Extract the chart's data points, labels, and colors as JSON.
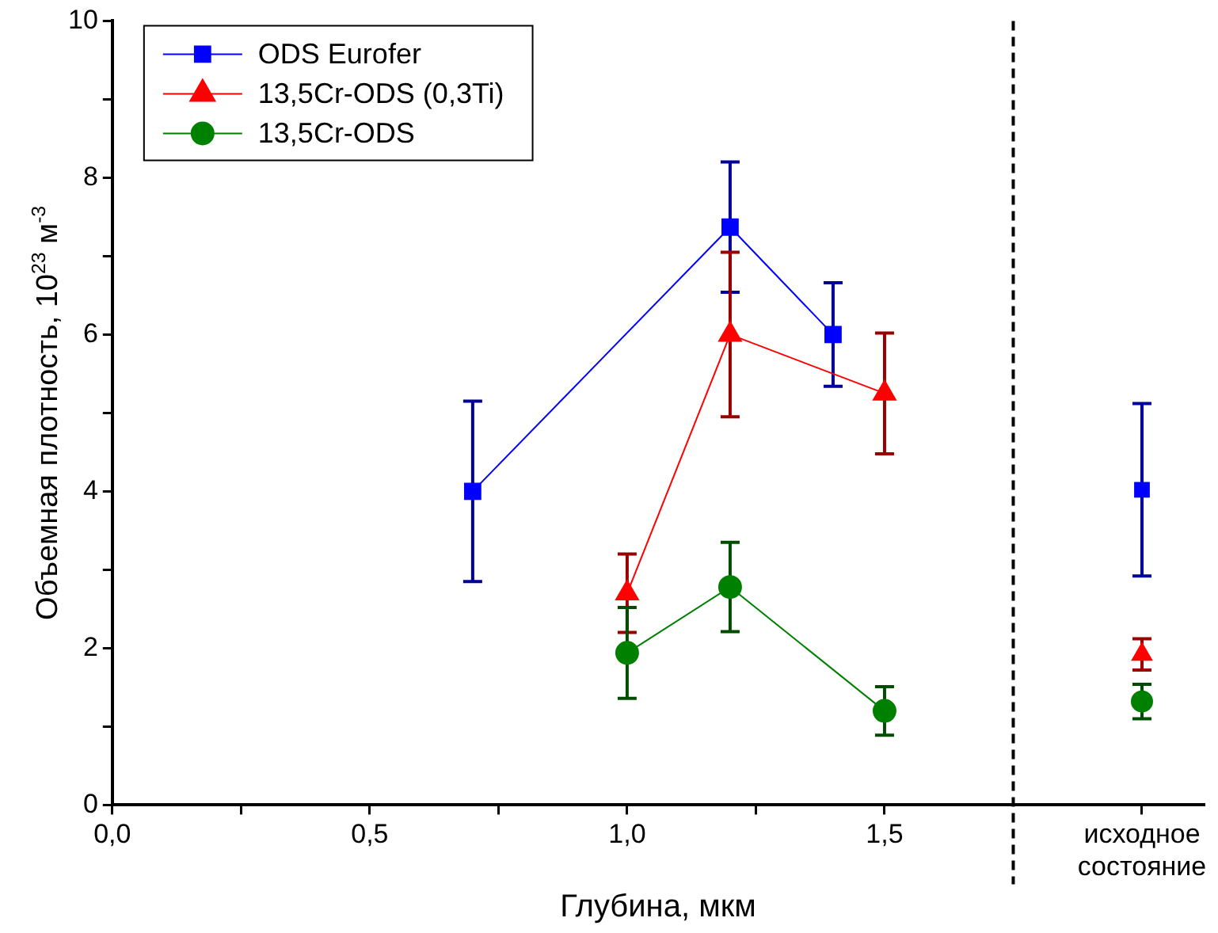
{
  "chart_data": {
    "type": "line",
    "xlabel": "Глубина, мкм",
    "ylabel": "Объемная плотность, 10$^{23}$ м$^{-3}$",
    "xlim": [
      0,
      2.12
    ],
    "ylim": [
      0,
      10
    ],
    "xticks": [
      {
        "value": 0,
        "label": "0,0"
      },
      {
        "value": 0.25,
        "label": null
      },
      {
        "value": 0.5,
        "label": "0,5"
      },
      {
        "value": 0.75,
        "label": null
      },
      {
        "value": 1,
        "label": "1,0"
      },
      {
        "value": 1.25,
        "label": null
      },
      {
        "value": 1.5,
        "label": "1,5"
      },
      {
        "value": 2,
        "label": "исходное состояние"
      }
    ],
    "yticks": [
      0,
      {
        "value": 1,
        "label": null
      },
      2,
      {
        "value": 3,
        "label": null
      },
      4,
      {
        "value": 5,
        "label": null
      },
      6,
      {
        "value": 7,
        "label": null
      },
      8,
      {
        "value": 9,
        "label": null
      },
      10
    ],
    "grid": false,
    "legend": "top left",
    "line_style": "solid",
    "ref_lines": [
      {
        "axis": "x",
        "value": 1.75,
        "label": null,
        "color": "#000000",
        "line_style": "dashed"
      }
    ],
    "series": [
      {
        "name": "ODS Eurofer",
        "type": "line",
        "marker": "square",
        "color": "#0000ff",
        "x": [
          0.7,
          1.2,
          1.4
        ],
        "values": [
          4.0,
          7.37,
          6.0
        ],
        "errors": [
          1.15,
          0.83,
          0.66
        ]
      },
      {
        "name": "13,5Cr-ODS (0,3Ti)",
        "type": "line",
        "marker": "triangle",
        "color": "#ff0000",
        "x": [
          1.0,
          1.2,
          1.5
        ],
        "values": [
          2.7,
          6.0,
          5.25
        ],
        "errors": [
          0.5,
          1.05,
          0.77
        ]
      },
      {
        "name": "13,5Cr-ODS",
        "type": "line",
        "marker": "circle",
        "color": "#008000",
        "x": [
          1.0,
          1.2,
          1.5
        ],
        "values": [
          1.94,
          2.78,
          1.2
        ],
        "errors": [
          0.58,
          0.57,
          0.31
        ]
      },
      {
        "type": "scatter",
        "marker": "square",
        "color": "#0000ff",
        "x": [
          2
        ],
        "values": [
          4.02
        ],
        "errors": [
          1.1
        ]
      },
      {
        "type": "scatter",
        "marker": "triangle",
        "color": "#ff0000",
        "x": [
          2
        ],
        "values": [
          1.92
        ],
        "errors": [
          0.2
        ]
      },
      {
        "type": "scatter",
        "marker": "circle",
        "color": "#008000",
        "x": [
          2
        ],
        "values": [
          1.32
        ],
        "errors": [
          0.22
        ]
      }
    ]
  }
}
